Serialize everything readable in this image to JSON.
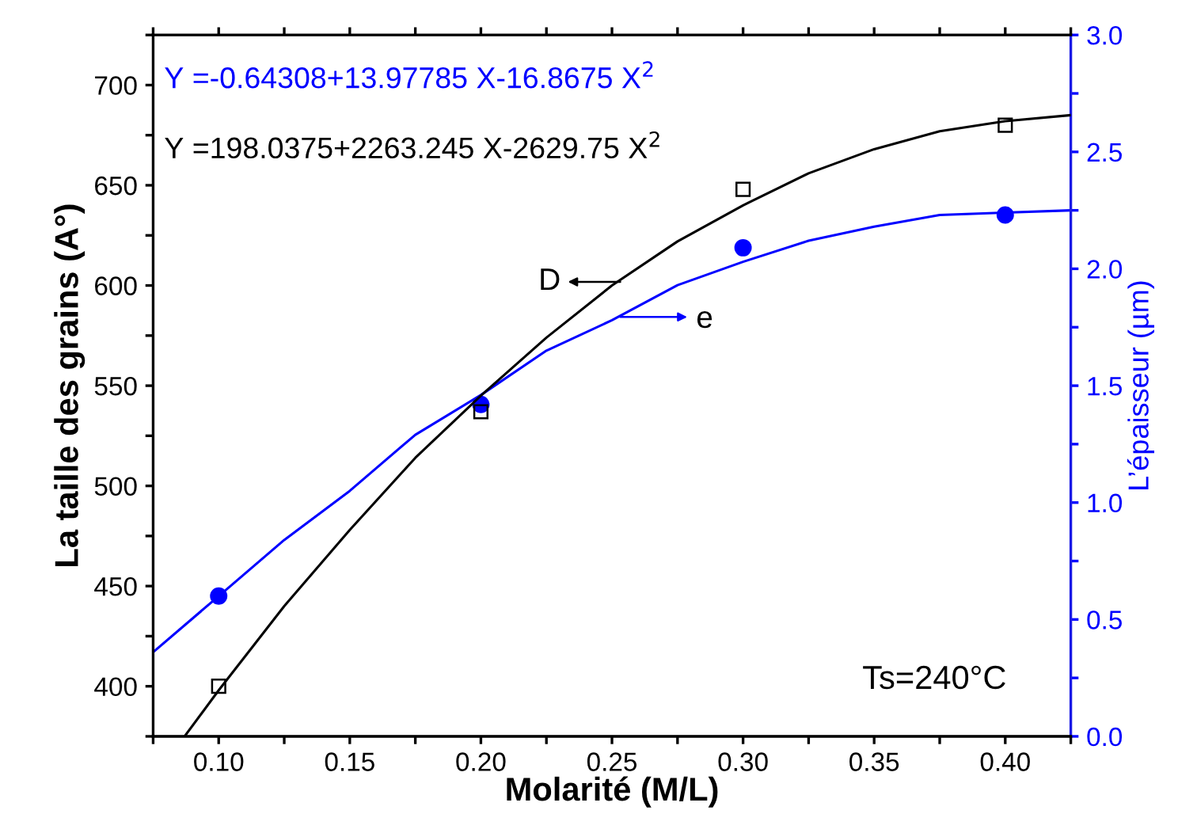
{
  "chart_data": {
    "type": "scatter",
    "xlabel": "Molarité (M/L)",
    "ylabel": "La taille des grains (A°)",
    "y2label": "L’épaisseur (µm)",
    "xlim": [
      0.075,
      0.425
    ],
    "xticks": [
      {
        "value": 0.075,
        "label": null
      },
      {
        "value": 0.1,
        "label": "0.10"
      },
      {
        "value": 0.125,
        "label": null
      },
      {
        "value": 0.15,
        "label": "0.15"
      },
      {
        "value": 0.175,
        "label": null
      },
      {
        "value": 0.2,
        "label": "0.20"
      },
      {
        "value": 0.225,
        "label": null
      },
      {
        "value": 0.25,
        "label": "0.25"
      },
      {
        "value": 0.275,
        "label": null
      },
      {
        "value": 0.3,
        "label": "0.30"
      },
      {
        "value": 0.325,
        "label": null
      },
      {
        "value": 0.35,
        "label": "0.35"
      },
      {
        "value": 0.375,
        "label": null
      },
      {
        "value": 0.4,
        "label": "0.40"
      },
      {
        "value": 0.425,
        "label": null
      }
    ],
    "ylim": [
      375,
      725
    ],
    "yticks": [
      {
        "value": 375,
        "label": null
      },
      400,
      {
        "value": 425,
        "label": null
      },
      450,
      {
        "value": 475,
        "label": null
      },
      500,
      {
        "value": 525,
        "label": null
      },
      550,
      {
        "value": 575,
        "label": null
      },
      600,
      {
        "value": 625,
        "label": null
      },
      650,
      {
        "value": 675,
        "label": null
      },
      700,
      {
        "value": 725,
        "label": null
      }
    ],
    "y2lim": [
      0,
      3
    ],
    "y2ticks": [
      {
        "value": 0,
        "label": "0.0"
      },
      {
        "value": 0.25,
        "label": null
      },
      0.5,
      {
        "value": 0.75,
        "label": null
      },
      {
        "value": 1,
        "label": "1.0"
      },
      {
        "value": 1.25,
        "label": null
      },
      1.5,
      {
        "value": 1.75,
        "label": null
      },
      {
        "value": 2,
        "label": "2.0"
      },
      {
        "value": 2.25,
        "label": null
      },
      2.5,
      {
        "value": 2.75,
        "label": null
      },
      {
        "value": 3,
        "label": "3.0"
      }
    ],
    "series": [
      {
        "color": "#000000",
        "marker": "square",
        "x": [
          0.1,
          0.2,
          0.3,
          0.4
        ],
        "values": [
          400,
          537,
          648,
          680
        ]
      },
      {
        "type": "line",
        "color": "#000000",
        "marker": "none",
        "x": [
          0.087,
          0.1,
          0.125,
          0.15,
          0.175,
          0.2,
          0.225,
          0.25,
          0.275,
          0.3,
          0.325,
          0.35,
          0.375,
          0.4,
          0.425
        ],
        "values": [
          375,
          398,
          440,
          478,
          514,
          545,
          574,
          600,
          622,
          640,
          656,
          668,
          677,
          682,
          685
        ]
      },
      {
        "color": "#0000ff",
        "marker": "circle",
        "axis": "y2",
        "x": [
          0.1,
          0.2,
          0.3,
          0.4
        ],
        "values": [
          0.6,
          1.42,
          2.09,
          2.23
        ]
      },
      {
        "type": "line",
        "color": "#0000ff",
        "marker": "none",
        "axis": "y2",
        "x": [
          0.075,
          0.1,
          0.125,
          0.15,
          0.175,
          0.2,
          0.225,
          0.25,
          0.275,
          0.3,
          0.325,
          0.35,
          0.375,
          0.4,
          0.425
        ],
        "values": [
          0.36,
          0.6,
          0.84,
          1.05,
          1.29,
          1.46,
          1.65,
          1.78,
          1.93,
          2.03,
          2.12,
          2.18,
          2.23,
          2.24,
          2.25
        ]
      }
    ],
    "annotations": [
      "Y =-0.64308+13.97785 X-16.8675 X$^{2}$",
      "Y =198.0375+2263.245 X-2629.75 X$^{2}$",
      "D",
      "e",
      "Ts=240°C"
    ],
    "grid": false,
    "legend": false
  }
}
